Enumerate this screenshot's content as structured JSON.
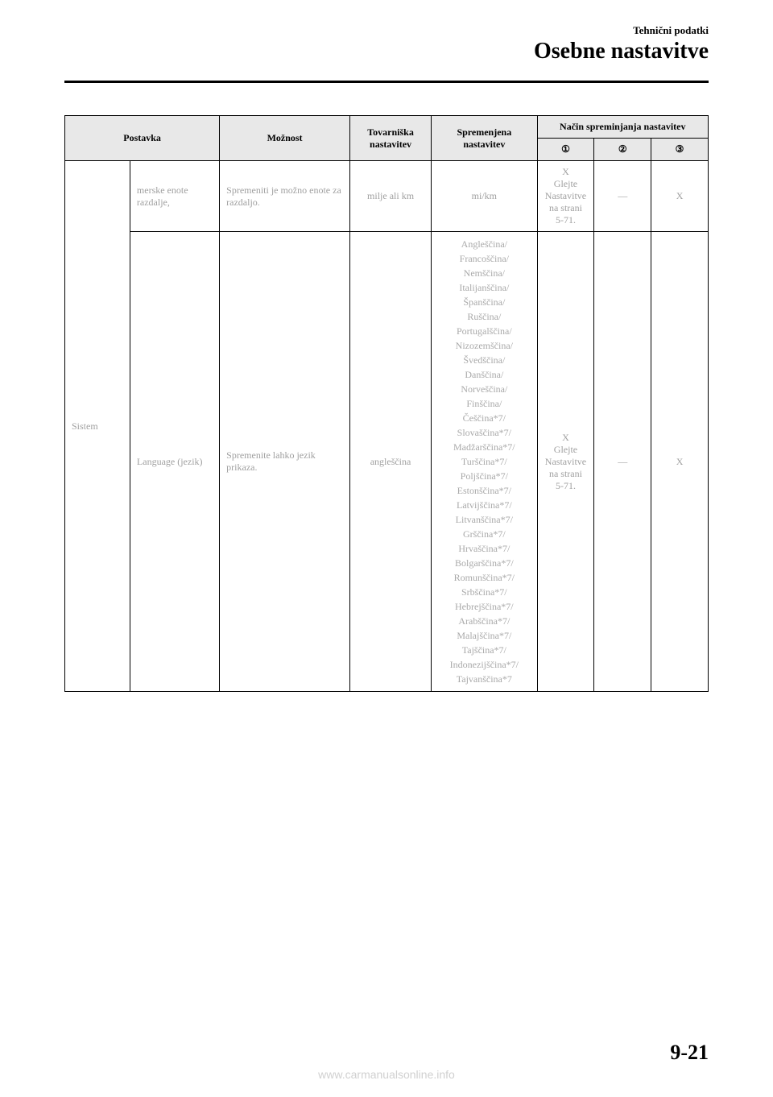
{
  "header": {
    "category": "Tehnični podatki",
    "title": "Osebne nastavitve"
  },
  "table": {
    "headers": {
      "postavka": "Postavka",
      "moznost": "Možnost",
      "tovarniska": "Tovarniška nastavitev",
      "spremenjena": "Spremenjena nastavitev",
      "nacin": "Način spreminjanja nastavitev",
      "col1": "①",
      "col2": "②",
      "col3": "③"
    },
    "rows": {
      "sistem_label": "Sistem",
      "row1": {
        "sub": "merske enote razdalje,",
        "moznost": "Spremeniti je možno enote za razdaljo.",
        "tovarniska": "milje ali km",
        "spremenjena": "mi/km",
        "c1": "X\nGlejte\nNastavitve\nna strani\n5-71.",
        "c2": "—",
        "c3": "X"
      },
      "row2": {
        "sub": "Language (jezik)",
        "moznost": "Spremenite lahko jezik prikaza.",
        "tovarniska": "angleščina",
        "spremenjena": "Angleščina/\nFrancoščina/\nNemščina/\nItalijanščina/\nŠpanščina/\nRuščina/\nPortugalščina/\nNizozemščina/\nŠvedščina/\nDanščina/\nNorveščina/\nFinščina/\nČeščina*7/\nSlovaščina*7/\nMadžarščina*7/\nTurščina*7/\nPoljščina*7/\nEstonščina*7/\nLatvijščina*7/\nLitvanščina*7/\nGrščina*7/\nHrvaščina*7/\nBolgarščina*7/\nRomunščina*7/\nSrbščina*7/\nHebrejščina*7/\nArabščina*7/\nMalajščina*7/\nTajščina*7/\nIndonezijščina*7/\nTajvanščina*7",
        "c1": "X\nGlejte\nNastavitve\nna strani\n5-71.",
        "c2": "—",
        "c3": "X"
      }
    }
  },
  "footer": {
    "page_number": "9-21",
    "watermark": "www.carmanualsonline.info"
  },
  "colors": {
    "header_bg": "#e8e8e8",
    "body_text": "#a0a0a0",
    "border": "#000000"
  }
}
